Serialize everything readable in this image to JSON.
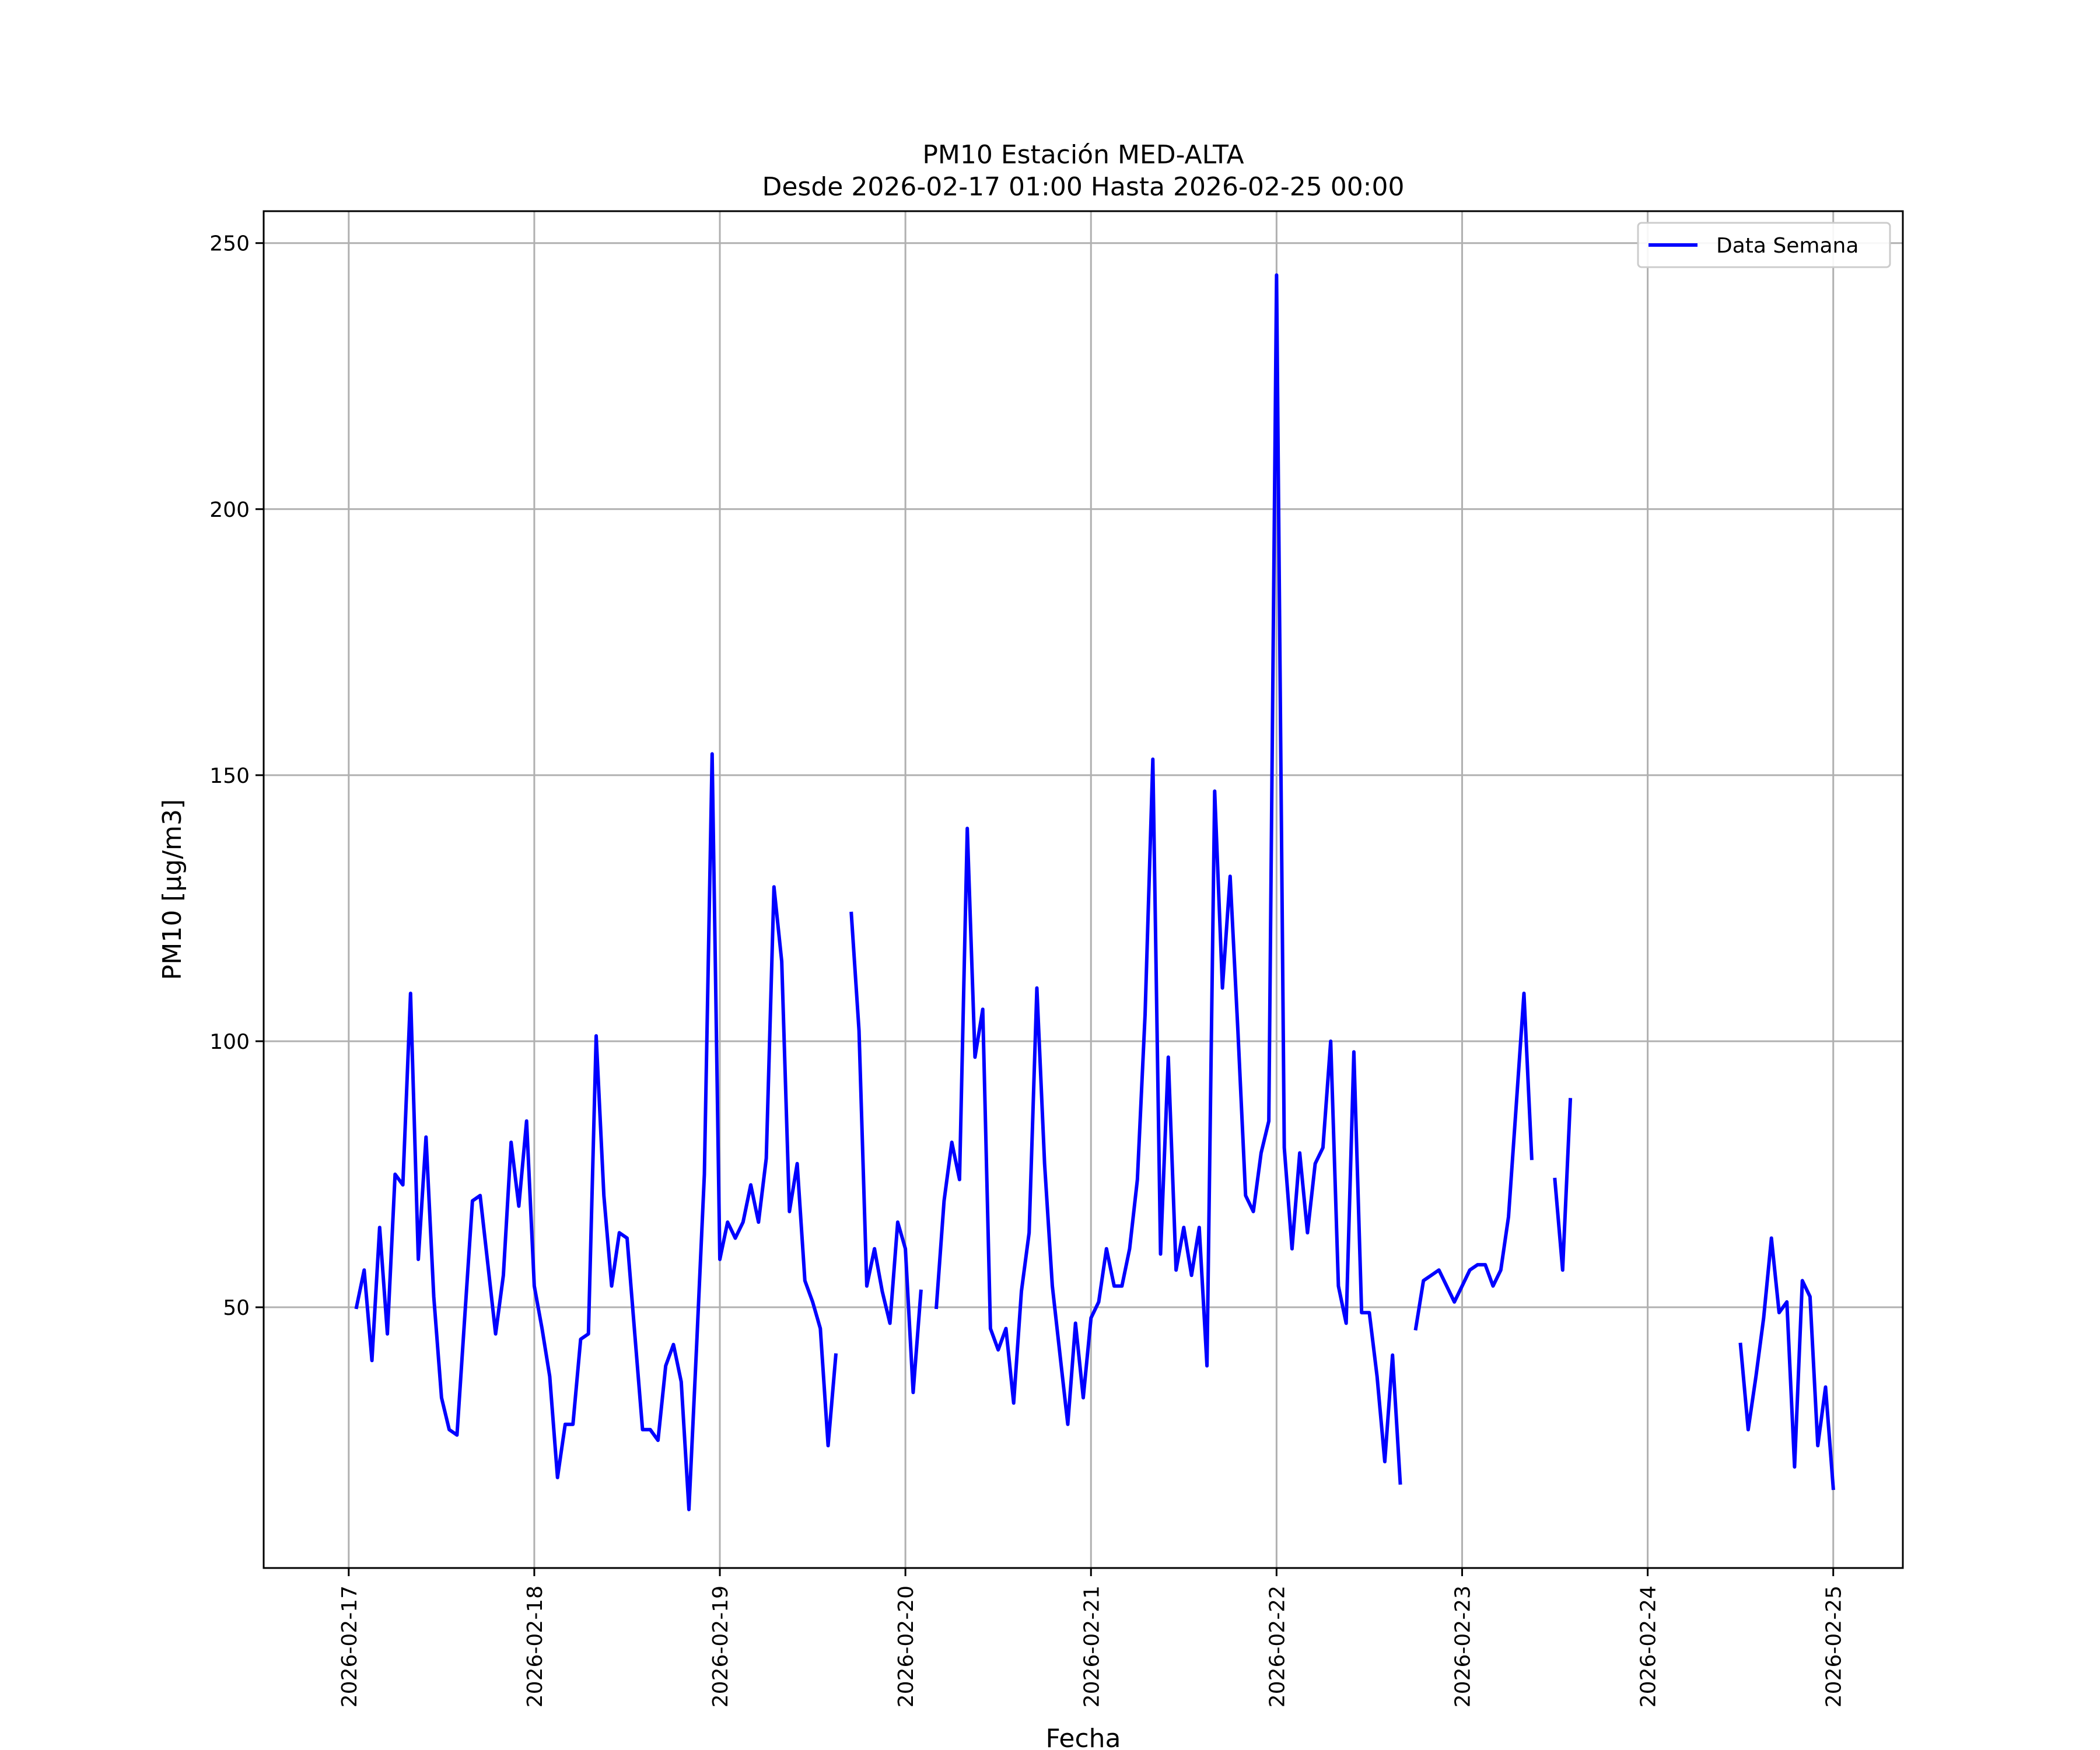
{
  "chart_data": {
    "type": "line",
    "title_line1": "PM10 Estación MED-ALTA",
    "title_line2": "Desde 2026-02-17 01:00 Hasta 2026-02-25 00:00",
    "xlabel": "Fecha",
    "ylabel": "PM10 [μg/m3]",
    "x_ticks": [
      "2026-02-17",
      "2026-02-18",
      "2026-02-19",
      "2026-02-20",
      "2026-02-21",
      "2026-02-22",
      "2026-02-23",
      "2026-02-24",
      "2026-02-25"
    ],
    "y_ticks": [
      50,
      100,
      150,
      200,
      250
    ],
    "x_range": [
      "2026-02-16T13:00",
      "2026-02-25T09:00"
    ],
    "y_range": [
      1,
      256
    ],
    "grid": true,
    "legend_placement": "top-right",
    "colors": {
      "series": "#0000ff",
      "grid": "#b0b0b0",
      "axis": "#000000"
    },
    "series": [
      {
        "name": "Data Semana",
        "segments": [
          [
            [
              "2026-02-17T01:00",
              50
            ],
            [
              "2026-02-17T02:00",
              57
            ],
            [
              "2026-02-17T03:00",
              40
            ],
            [
              "2026-02-17T04:00",
              65
            ],
            [
              "2026-02-17T05:00",
              45
            ],
            [
              "2026-02-17T06:00",
              75
            ],
            [
              "2026-02-17T07:00",
              73
            ],
            [
              "2026-02-17T08:00",
              109
            ],
            [
              "2026-02-17T09:00",
              59
            ],
            [
              "2026-02-17T10:00",
              82
            ],
            [
              "2026-02-17T11:00",
              52
            ],
            [
              "2026-02-17T12:00",
              33
            ],
            [
              "2026-02-17T13:00",
              27
            ],
            [
              "2026-02-17T14:00",
              26
            ],
            [
              "2026-02-17T15:00",
              48
            ],
            [
              "2026-02-17T16:00",
              70
            ],
            [
              "2026-02-17T17:00",
              71
            ],
            [
              "2026-02-17T18:00",
              58
            ],
            [
              "2026-02-17T19:00",
              45
            ],
            [
              "2026-02-17T20:00",
              56
            ],
            [
              "2026-02-17T21:00",
              81
            ],
            [
              "2026-02-17T22:00",
              69
            ],
            [
              "2026-02-17T23:00",
              85
            ],
            [
              "2026-02-18T00:00",
              54
            ],
            [
              "2026-02-18T01:00",
              46
            ],
            [
              "2026-02-18T02:00",
              37
            ],
            [
              "2026-02-18T03:00",
              18
            ],
            [
              "2026-02-18T04:00",
              28
            ],
            [
              "2026-02-18T05:00",
              28
            ],
            [
              "2026-02-18T06:00",
              44
            ],
            [
              "2026-02-18T07:00",
              45
            ],
            [
              "2026-02-18T08:00",
              101
            ],
            [
              "2026-02-18T09:00",
              71
            ],
            [
              "2026-02-18T10:00",
              54
            ],
            [
              "2026-02-18T11:00",
              64
            ],
            [
              "2026-02-18T12:00",
              63
            ],
            [
              "2026-02-18T13:00",
              45
            ],
            [
              "2026-02-18T14:00",
              27
            ],
            [
              "2026-02-18T15:00",
              27
            ],
            [
              "2026-02-18T16:00",
              25
            ],
            [
              "2026-02-18T17:00",
              39
            ],
            [
              "2026-02-18T18:00",
              43
            ],
            [
              "2026-02-18T19:00",
              36
            ],
            [
              "2026-02-18T20:00",
              12
            ],
            [
              "2026-02-18T21:00",
              43
            ],
            [
              "2026-02-18T22:00",
              75
            ],
            [
              "2026-02-18T23:00",
              154
            ],
            [
              "2026-02-19T00:00",
              59
            ],
            [
              "2026-02-19T01:00",
              66
            ],
            [
              "2026-02-19T02:00",
              63
            ],
            [
              "2026-02-19T03:00",
              66
            ],
            [
              "2026-02-19T04:00",
              73
            ],
            [
              "2026-02-19T05:00",
              66
            ],
            [
              "2026-02-19T06:00",
              78
            ],
            [
              "2026-02-19T07:00",
              129
            ],
            [
              "2026-02-19T08:00",
              115
            ],
            [
              "2026-02-19T09:00",
              68
            ],
            [
              "2026-02-19T10:00",
              77
            ],
            [
              "2026-02-19T11:00",
              55
            ],
            [
              "2026-02-19T12:00",
              51
            ],
            [
              "2026-02-19T13:00",
              46
            ],
            [
              "2026-02-19T14:00",
              24
            ],
            [
              "2026-02-19T15:00",
              41
            ]
          ],
          [
            [
              "2026-02-19T17:00",
              124
            ],
            [
              "2026-02-19T18:00",
              102
            ],
            [
              "2026-02-19T19:00",
              54
            ],
            [
              "2026-02-19T20:00",
              61
            ],
            [
              "2026-02-19T21:00",
              53
            ],
            [
              "2026-02-19T22:00",
              47
            ],
            [
              "2026-02-19T23:00",
              66
            ],
            [
              "2026-02-20T00:00",
              61
            ],
            [
              "2026-02-20T01:00",
              34
            ],
            [
              "2026-02-20T02:00",
              53
            ]
          ],
          [
            [
              "2026-02-20T04:00",
              50
            ],
            [
              "2026-02-20T05:00",
              70
            ],
            [
              "2026-02-20T06:00",
              81
            ],
            [
              "2026-02-20T07:00",
              74
            ],
            [
              "2026-02-20T08:00",
              140
            ],
            [
              "2026-02-20T09:00",
              97
            ],
            [
              "2026-02-20T10:00",
              106
            ],
            [
              "2026-02-20T11:00",
              46
            ],
            [
              "2026-02-20T12:00",
              42
            ],
            [
              "2026-02-20T13:00",
              46
            ],
            [
              "2026-02-20T14:00",
              32
            ],
            [
              "2026-02-20T15:00",
              53
            ],
            [
              "2026-02-20T16:00",
              64
            ],
            [
              "2026-02-20T17:00",
              110
            ],
            [
              "2026-02-20T18:00",
              77
            ],
            [
              "2026-02-20T19:00",
              54
            ],
            [
              "2026-02-20T20:00",
              41
            ],
            [
              "2026-02-20T21:00",
              28
            ],
            [
              "2026-02-20T22:00",
              47
            ],
            [
              "2026-02-20T23:00",
              33
            ],
            [
              "2026-02-21T00:00",
              48
            ],
            [
              "2026-02-21T01:00",
              51
            ],
            [
              "2026-02-21T02:00",
              61
            ],
            [
              "2026-02-21T03:00",
              54
            ],
            [
              "2026-02-21T04:00",
              54
            ],
            [
              "2026-02-21T05:00",
              61
            ],
            [
              "2026-02-21T06:00",
              74
            ],
            [
              "2026-02-21T07:00",
              105
            ],
            [
              "2026-02-21T08:00",
              153
            ],
            [
              "2026-02-21T09:00",
              60
            ],
            [
              "2026-02-21T10:00",
              97
            ],
            [
              "2026-02-21T11:00",
              57
            ],
            [
              "2026-02-21T12:00",
              65
            ],
            [
              "2026-02-21T13:00",
              56
            ],
            [
              "2026-02-21T14:00",
              65
            ],
            [
              "2026-02-21T15:00",
              39
            ],
            [
              "2026-02-21T16:00",
              147
            ],
            [
              "2026-02-21T17:00",
              110
            ],
            [
              "2026-02-21T18:00",
              131
            ],
            [
              "2026-02-21T19:00",
              102
            ],
            [
              "2026-02-21T20:00",
              71
            ],
            [
              "2026-02-21T21:00",
              68
            ],
            [
              "2026-02-21T22:00",
              79
            ],
            [
              "2026-02-21T23:00",
              85
            ],
            [
              "2026-02-22T00:00",
              244
            ],
            [
              "2026-02-22T01:00",
              80
            ],
            [
              "2026-02-22T02:00",
              61
            ],
            [
              "2026-02-22T03:00",
              79
            ],
            [
              "2026-02-22T04:00",
              64
            ],
            [
              "2026-02-22T05:00",
              77
            ],
            [
              "2026-02-22T06:00",
              80
            ],
            [
              "2026-02-22T07:00",
              100
            ],
            [
              "2026-02-22T08:00",
              54
            ],
            [
              "2026-02-22T09:00",
              47
            ],
            [
              "2026-02-22T10:00",
              98
            ],
            [
              "2026-02-22T11:00",
              49
            ],
            [
              "2026-02-22T12:00",
              49
            ],
            [
              "2026-02-22T13:00",
              37
            ],
            [
              "2026-02-22T14:00",
              21
            ],
            [
              "2026-02-22T15:00",
              41
            ],
            [
              "2026-02-22T16:00",
              17
            ]
          ],
          [
            [
              "2026-02-22T18:00",
              46
            ],
            [
              "2026-02-22T19:00",
              55
            ],
            [
              "2026-02-22T20:00",
              56
            ],
            [
              "2026-02-22T21:00",
              57
            ],
            [
              "2026-02-22T22:00",
              54
            ],
            [
              "2026-02-22T23:00",
              51
            ],
            [
              "2026-02-23T00:00",
              54
            ],
            [
              "2026-02-23T01:00",
              57
            ],
            [
              "2026-02-23T02:00",
              58
            ],
            [
              "2026-02-23T03:00",
              58
            ],
            [
              "2026-02-23T04:00",
              54
            ],
            [
              "2026-02-23T05:00",
              57
            ],
            [
              "2026-02-23T06:00",
              67
            ],
            [
              "2026-02-23T07:00",
              88
            ],
            [
              "2026-02-23T08:00",
              109
            ],
            [
              "2026-02-23T09:00",
              78
            ]
          ],
          [
            [
              "2026-02-23T12:00",
              74
            ],
            [
              "2026-02-23T13:00",
              57
            ],
            [
              "2026-02-23T14:00",
              89
            ]
          ],
          [
            [
              "2026-02-24T12:00",
              43
            ],
            [
              "2026-02-24T13:00",
              27
            ],
            [
              "2026-02-24T14:00",
              37
            ],
            [
              "2026-02-24T15:00",
              48
            ],
            [
              "2026-02-24T16:00",
              63
            ],
            [
              "2026-02-24T17:00",
              49
            ],
            [
              "2026-02-24T18:00",
              51
            ],
            [
              "2026-02-24T19:00",
              20
            ],
            [
              "2026-02-24T20:00",
              55
            ],
            [
              "2026-02-24T21:00",
              52
            ],
            [
              "2026-02-24T22:00",
              24
            ],
            [
              "2026-02-24T23:00",
              35
            ],
            [
              "2026-02-25T00:00",
              16
            ]
          ]
        ]
      }
    ]
  }
}
